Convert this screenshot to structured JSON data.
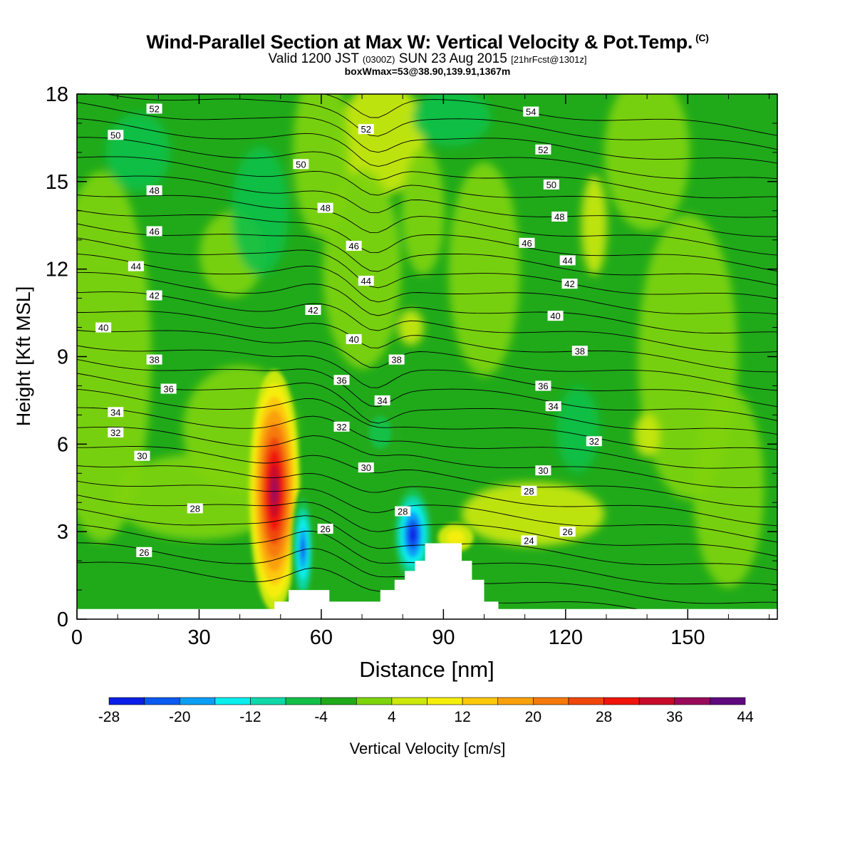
{
  "header": {
    "title": "Wind-Parallel Section at Max W: Vertical Velocity & Pot.Temp.",
    "copyright": "(C)",
    "valid_prefix": "Valid 1200 JST",
    "valid_utc": "(0300Z)",
    "valid_date": "SUN 23 Aug 2015",
    "forecast": "[21hrFcst@1301z]",
    "boxwmax": "boxWmax=53@38.90,139.91,1367m"
  },
  "colors": {
    "ramp": [
      "#0a1ee6",
      "#0a5af0",
      "#0a9ef6",
      "#0aeeee",
      "#10d8a8",
      "#12c046",
      "#20aa1a",
      "#7ed40a",
      "#cbe80a",
      "#f5ee0a",
      "#fdc80a",
      "#fba00a",
      "#f67a0a",
      "#f0460a",
      "#f0140a",
      "#c80a2a",
      "#9a0a5a",
      "#60087e"
    ],
    "terrain": "#ffffff",
    "contour": "#000000",
    "background_band": "#20aa1a"
  },
  "chart_data": {
    "type": "heatmap",
    "subtype": "vertical cross-section",
    "xlabel": "Distance [nm]",
    "ylabel": "Height [Kft MSL]",
    "xlim": [
      0,
      172
    ],
    "ylim": [
      0,
      18
    ],
    "xticks": [
      0,
      30,
      60,
      90,
      120,
      150
    ],
    "yticks": [
      0,
      3,
      6,
      9,
      12,
      15,
      18
    ],
    "colorbar": {
      "label": "Vertical Velocity [cm/s]",
      "bounds": [
        -28,
        -24,
        -20,
        -16,
        -12,
        -8,
        -4,
        0,
        4,
        8,
        12,
        16,
        20,
        24,
        28,
        32,
        36,
        40,
        44
      ],
      "tick_labels": [
        "-28",
        "-20",
        "-12",
        "-4",
        "4",
        "12",
        "20",
        "28",
        "36",
        "44"
      ]
    },
    "terrain_profile_kft": {
      "x": [
        0,
        48.5,
        48.5,
        52,
        52,
        62,
        62,
        74.5,
        74.5,
        78,
        78,
        80.5,
        80.5,
        83,
        83,
        85.5,
        85.5,
        94.5,
        94.5,
        97,
        97,
        100,
        100,
        103.5,
        103.5,
        172
      ],
      "height": [
        0.35,
        0.35,
        0.6,
        0.6,
        1.0,
        1.0,
        0.6,
        0.6,
        1.0,
        1.0,
        1.35,
        1.35,
        1.65,
        1.65,
        2.0,
        2.0,
        2.6,
        2.6,
        2.0,
        2.0,
        1.35,
        1.35,
        0.6,
        0.6,
        0.35,
        0.35
      ]
    },
    "velocity_features": [
      {
        "kind": "updraft",
        "x": 48.5,
        "z": 4.5,
        "peak": 36
      },
      {
        "kind": "downdraft",
        "x": 55.5,
        "z": 2.5,
        "peak": -22
      },
      {
        "kind": "downdraft",
        "x": 83,
        "z": 2.9,
        "peak": -26
      },
      {
        "kind": "updraft",
        "x": 94,
        "z": 2.8,
        "peak": 10
      },
      {
        "kind": "downdraft",
        "x": 74,
        "z": 6.5,
        "peak": -6
      }
    ],
    "theta_contour_labels": [
      {
        "value": "52",
        "x": 19,
        "y": 17.5
      },
      {
        "value": "50",
        "x": 9.5,
        "y": 16.6
      },
      {
        "value": "48",
        "x": 19,
        "y": 14.7
      },
      {
        "value": "46",
        "x": 19,
        "y": 13.3
      },
      {
        "value": "44",
        "x": 14.5,
        "y": 12.1
      },
      {
        "value": "42",
        "x": 19,
        "y": 11.1
      },
      {
        "value": "40",
        "x": 6.5,
        "y": 10.0
      },
      {
        "value": "38",
        "x": 19,
        "y": 8.9
      },
      {
        "value": "36",
        "x": 22.5,
        "y": 7.9
      },
      {
        "value": "34",
        "x": 9.5,
        "y": 7.1
      },
      {
        "value": "32",
        "x": 9.5,
        "y": 6.4
      },
      {
        "value": "30",
        "x": 16,
        "y": 5.6
      },
      {
        "value": "28",
        "x": 29,
        "y": 3.8
      },
      {
        "value": "26",
        "x": 16.5,
        "y": 2.3
      },
      {
        "value": "50",
        "x": 55,
        "y": 15.6
      },
      {
        "value": "48",
        "x": 61,
        "y": 14.1
      },
      {
        "value": "46",
        "x": 68,
        "y": 12.8
      },
      {
        "value": "44",
        "x": 71,
        "y": 11.6
      },
      {
        "value": "42",
        "x": 58,
        "y": 10.6
      },
      {
        "value": "40",
        "x": 68,
        "y": 9.6
      },
      {
        "value": "38",
        "x": 78.5,
        "y": 8.9
      },
      {
        "value": "36",
        "x": 65,
        "y": 8.2
      },
      {
        "value": "34",
        "x": 75,
        "y": 7.5
      },
      {
        "value": "32",
        "x": 65,
        "y": 6.6
      },
      {
        "value": "30",
        "x": 71,
        "y": 5.2
      },
      {
        "value": "28",
        "x": 80,
        "y": 3.7
      },
      {
        "value": "26",
        "x": 61,
        "y": 3.1
      },
      {
        "value": "52",
        "x": 71,
        "y": 16.8
      },
      {
        "value": "54",
        "x": 111.5,
        "y": 17.4
      },
      {
        "value": "52",
        "x": 114.5,
        "y": 16.1
      },
      {
        "value": "50",
        "x": 116.5,
        "y": 14.9
      },
      {
        "value": "48",
        "x": 118.5,
        "y": 13.8
      },
      {
        "value": "46",
        "x": 110.5,
        "y": 12.9
      },
      {
        "value": "44",
        "x": 120.5,
        "y": 12.3
      },
      {
        "value": "42",
        "x": 121,
        "y": 11.5
      },
      {
        "value": "40",
        "x": 117.5,
        "y": 10.4
      },
      {
        "value": "38",
        "x": 123.5,
        "y": 9.2
      },
      {
        "value": "36",
        "x": 114.5,
        "y": 8.0
      },
      {
        "value": "34",
        "x": 117,
        "y": 7.3
      },
      {
        "value": "32",
        "x": 127,
        "y": 6.1
      },
      {
        "value": "30",
        "x": 114.5,
        "y": 5.1
      },
      {
        "value": "28",
        "x": 111,
        "y": 4.4
      },
      {
        "value": "26",
        "x": 120.5,
        "y": 3.0
      },
      {
        "value": "24",
        "x": 111,
        "y": 2.7
      }
    ]
  }
}
